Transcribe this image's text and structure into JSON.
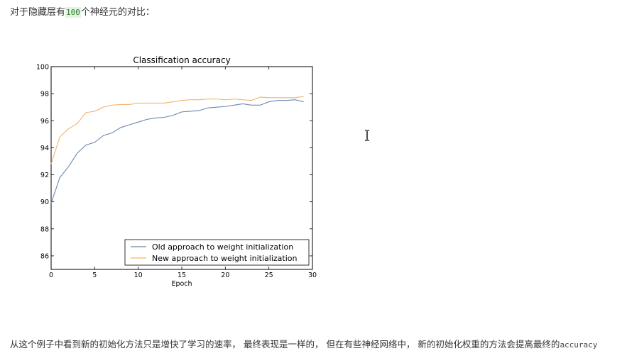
{
  "text": {
    "intro_prefix": "对于隐藏层有",
    "intro_code": "100",
    "intro_suffix": "个神经元的对比：",
    "conclusion": "从这个例子中看到新的初始化方法只是增快了学习的速率， 最终表现是一样的， 但在有些神经网络中， 新的初始化权重的方法会提高最终的",
    "conclusion_code": "accuracy"
  },
  "chart_data": {
    "type": "line",
    "title": "Classification accuracy",
    "xlabel": "Epoch",
    "ylabel": "",
    "xlim": [
      0,
      30
    ],
    "ylim": [
      85,
      100
    ],
    "xticks": [
      0,
      5,
      10,
      15,
      20,
      25,
      30
    ],
    "yticks": [
      86,
      88,
      90,
      92,
      94,
      96,
      98,
      100
    ],
    "grid": false,
    "legend_position": "lower-right",
    "x": [
      0,
      1,
      2,
      3,
      4,
      5,
      6,
      7,
      8,
      9,
      10,
      11,
      12,
      13,
      14,
      15,
      16,
      17,
      18,
      19,
      20,
      21,
      22,
      23,
      24,
      25,
      26,
      27,
      28,
      29
    ],
    "series": [
      {
        "name": "Old approach to weight initialization",
        "color": "#6b88b0",
        "values": [
          89.9,
          91.8,
          92.6,
          93.6,
          94.2,
          94.4,
          94.9,
          95.1,
          95.5,
          95.7,
          95.9,
          96.1,
          96.2,
          96.25,
          96.4,
          96.65,
          96.7,
          96.75,
          96.95,
          97.0,
          97.05,
          97.15,
          97.25,
          97.15,
          97.15,
          97.4,
          97.5,
          97.5,
          97.55,
          97.4
        ]
      },
      {
        "name": "New approach to weight initialization",
        "color": "#f2b56b",
        "values": [
          92.8,
          94.8,
          95.4,
          95.8,
          96.6,
          96.7,
          97.0,
          97.15,
          97.2,
          97.2,
          97.3,
          97.3,
          97.3,
          97.3,
          97.4,
          97.5,
          97.55,
          97.55,
          97.6,
          97.6,
          97.55,
          97.6,
          97.55,
          97.5,
          97.75,
          97.7,
          97.7,
          97.7,
          97.7,
          97.8
        ]
      }
    ]
  }
}
